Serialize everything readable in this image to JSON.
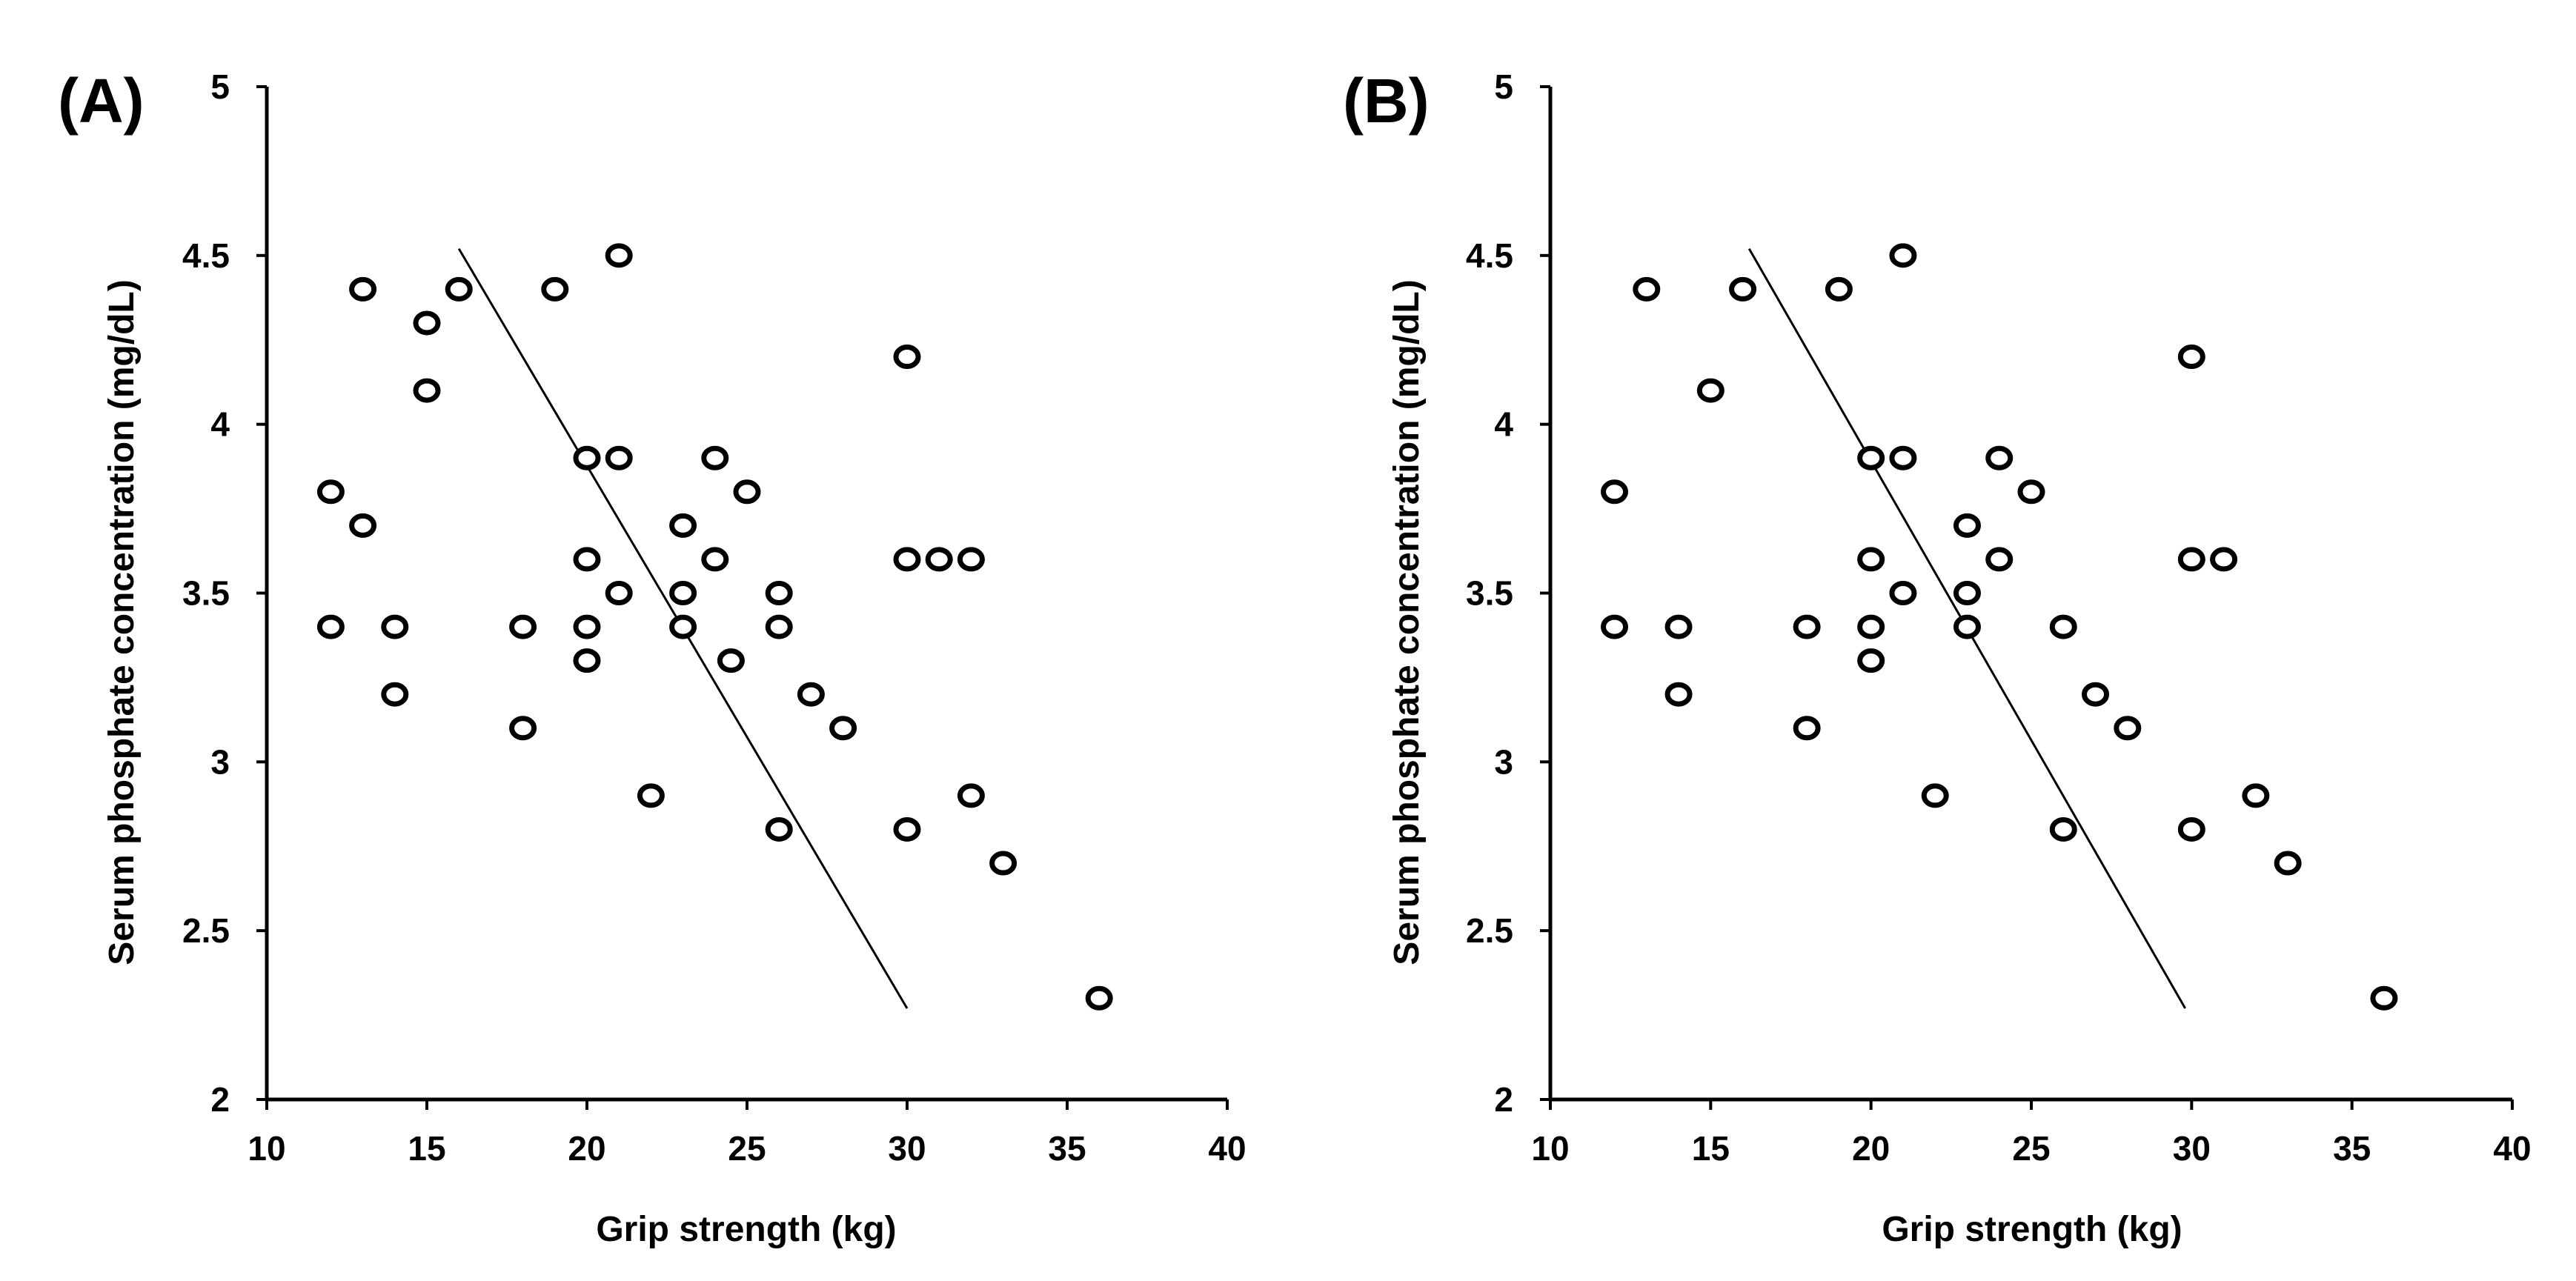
{
  "chart_data": [
    {
      "type": "scatter",
      "panel_label": "(A)",
      "xlabel": "Grip strength (kg)",
      "ylabel": "Serum phosphate concentration (mg/dL)",
      "xlim": [
        10,
        40
      ],
      "ylim": [
        2,
        5
      ],
      "xticks": [
        "10",
        "15",
        "20",
        "25",
        "30",
        "35",
        "40"
      ],
      "yticks": [
        "2",
        "2.5",
        "3",
        "3.5",
        "4",
        "4.5",
        "5"
      ],
      "grid": false,
      "trendline": {
        "from": [
          16,
          4.52
        ],
        "to": [
          30,
          2.27
        ]
      },
      "points": [
        [
          12,
          3.8
        ],
        [
          12,
          3.4
        ],
        [
          13,
          4.4
        ],
        [
          13,
          3.7
        ],
        [
          14,
          3.4
        ],
        [
          14,
          3.2
        ],
        [
          15,
          4.3
        ],
        [
          15,
          4.1
        ],
        [
          16,
          4.4
        ],
        [
          18,
          3.4
        ],
        [
          18,
          3.1
        ],
        [
          19,
          4.4
        ],
        [
          20,
          3.9
        ],
        [
          20,
          3.6
        ],
        [
          20,
          3.4
        ],
        [
          20,
          3.3
        ],
        [
          21,
          4.5
        ],
        [
          21,
          3.9
        ],
        [
          21,
          3.5
        ],
        [
          22,
          2.9
        ],
        [
          23,
          3.7
        ],
        [
          23,
          3.5
        ],
        [
          23,
          3.4
        ],
        [
          24,
          3.9
        ],
        [
          24,
          3.6
        ],
        [
          24.5,
          3.3
        ],
        [
          25,
          3.8
        ],
        [
          26,
          3.5
        ],
        [
          26,
          3.4
        ],
        [
          26,
          2.8
        ],
        [
          27,
          3.2
        ],
        [
          28,
          3.1
        ],
        [
          30,
          4.2
        ],
        [
          30,
          3.6
        ],
        [
          30,
          2.8
        ],
        [
          31,
          3.6
        ],
        [
          32,
          3.6
        ],
        [
          32,
          2.9
        ],
        [
          33,
          2.7
        ],
        [
          36,
          2.3
        ]
      ]
    },
    {
      "type": "scatter",
      "panel_label": "(B)",
      "xlabel": "Grip strength (kg)",
      "ylabel": "Serum phosphate concentration (mg/dL)",
      "xlim": [
        10,
        40
      ],
      "ylim": [
        2,
        5
      ],
      "xticks": [
        "10",
        "15",
        "20",
        "25",
        "30",
        "35",
        "40"
      ],
      "yticks": [
        "2",
        "2.5",
        "3",
        "3.5",
        "4",
        "4.5",
        "5"
      ],
      "grid": false,
      "trendline": {
        "from": [
          16.2,
          4.52
        ],
        "to": [
          29.8,
          2.27
        ]
      },
      "points": [
        [
          12,
          3.8
        ],
        [
          12,
          3.4
        ],
        [
          13,
          4.4
        ],
        [
          14,
          3.4
        ],
        [
          14,
          3.2
        ],
        [
          15,
          4.1
        ],
        [
          16,
          4.4
        ],
        [
          18,
          3.4
        ],
        [
          18,
          3.1
        ],
        [
          19,
          4.4
        ],
        [
          20,
          3.9
        ],
        [
          20,
          3.6
        ],
        [
          20,
          3.4
        ],
        [
          20,
          3.3
        ],
        [
          21,
          4.5
        ],
        [
          21,
          3.9
        ],
        [
          21,
          3.5
        ],
        [
          22,
          2.9
        ],
        [
          23,
          3.7
        ],
        [
          23,
          3.5
        ],
        [
          23,
          3.4
        ],
        [
          24,
          3.9
        ],
        [
          24,
          3.6
        ],
        [
          25,
          3.8
        ],
        [
          26,
          3.4
        ],
        [
          26,
          2.8
        ],
        [
          27,
          3.2
        ],
        [
          28,
          3.1
        ],
        [
          30,
          4.2
        ],
        [
          30,
          3.6
        ],
        [
          30,
          2.8
        ],
        [
          31,
          3.6
        ],
        [
          32,
          2.9
        ],
        [
          33,
          2.7
        ],
        [
          36,
          2.3
        ]
      ]
    }
  ]
}
